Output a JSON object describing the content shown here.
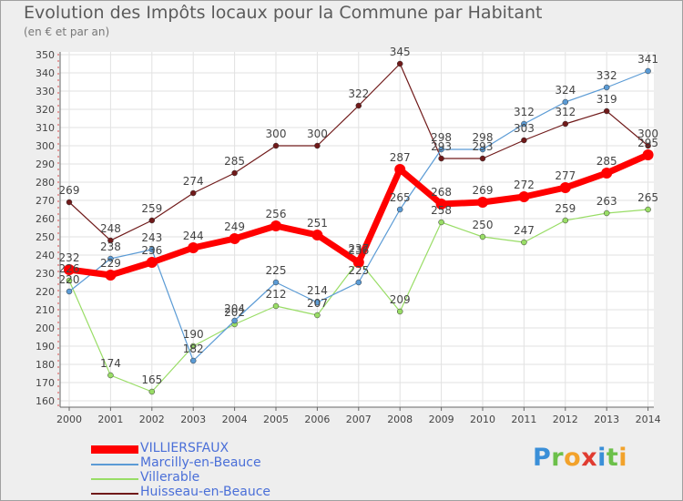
{
  "title": "Evolution des Impôts locaux pour la Commune par Habitant",
  "subtitle": "(en € et par an)",
  "logo": {
    "letters": [
      "P",
      "r",
      "o",
      "x",
      "i",
      "t",
      "i"
    ],
    "colors": [
      "#3a8fd8",
      "#6cc04a",
      "#f2a22b",
      "#e03c31",
      "#3a8fd8",
      "#6cc04a",
      "#f2a22b"
    ]
  },
  "chart_data": {
    "type": "line",
    "title": "Evolution des Impôts locaux pour la Commune par Habitant",
    "subtitle": "(en € et par an)",
    "xlabel": "",
    "ylabel": "",
    "categories": [
      "2000",
      "2001",
      "2002",
      "2003",
      "2004",
      "2005",
      "2006",
      "2007",
      "2008",
      "2009",
      "2010",
      "2011",
      "2012",
      "2013",
      "2014"
    ],
    "ylim": [
      160,
      350
    ],
    "yticks": [
      160,
      170,
      180,
      190,
      200,
      210,
      220,
      230,
      240,
      250,
      260,
      270,
      280,
      290,
      300,
      310,
      320,
      330,
      340,
      350
    ],
    "grid": true,
    "legend_position": "bottom-left",
    "series": [
      {
        "name": "Huisseau-en-Beauce",
        "color": "#701a1a",
        "values": [
          269,
          248,
          259,
          274,
          285,
          300,
          300,
          322,
          345,
          293,
          293,
          303,
          312,
          319,
          300
        ],
        "labels": [
          "269",
          "248",
          "259",
          "274",
          "285",
          "300",
          "300",
          "322",
          "345",
          "293",
          "293",
          "303",
          "312",
          "319",
          "300"
        ]
      },
      {
        "name": "Villerable",
        "color": "#99dd66",
        "values": [
          226,
          174,
          165,
          190,
          202,
          212,
          207,
          237,
          209,
          258,
          250,
          247,
          259,
          263,
          265
        ],
        "labels": [
          "226",
          "174",
          "165",
          "190",
          "202",
          "212",
          "207",
          "237",
          "209",
          "258",
          "250",
          "247",
          "259",
          "263",
          "265"
        ]
      },
      {
        "name": "Marcilly-en-Beauce",
        "color": "#5b9bd5",
        "values": [
          220,
          238,
          243,
          182,
          204,
          225,
          214,
          225,
          265,
          298,
          298,
          312,
          324,
          332,
          341
        ],
        "labels": [
          "220",
          "238",
          "243",
          "182",
          "204",
          "225",
          "214",
          "225",
          "265",
          "298",
          "298",
          "312",
          "324",
          "332",
          "341"
        ]
      },
      {
        "name": "VILLIERSFAUX",
        "color": "#ff0000",
        "values": [
          232,
          229,
          236,
          244,
          249,
          256,
          251,
          236,
          287,
          268,
          269,
          272,
          277,
          285,
          295
        ],
        "labels": [
          "232",
          "229",
          "236",
          "244",
          "249",
          "256",
          "251",
          "236",
          "287",
          "268",
          "269",
          "272",
          "277",
          "285",
          "295"
        ]
      }
    ]
  }
}
